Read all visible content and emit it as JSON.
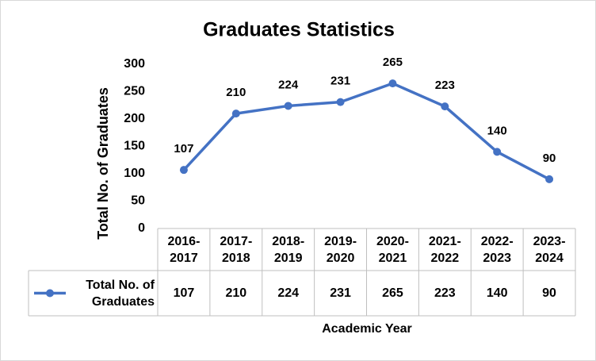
{
  "chart_data": {
    "type": "line",
    "title": "Graduates Statistics",
    "x_label": "Academic Year",
    "y_label": "Total No. of Graduates",
    "categories": [
      "2016-2017",
      "2017-2018",
      "2018-2019",
      "2019-2020",
      "2020-2021",
      "2021-2022",
      "2022-2023",
      "2023-2024"
    ],
    "series": [
      {
        "name": "Total No. of Graduates",
        "color": "#4472c4",
        "values": [
          107,
          210,
          224,
          231,
          265,
          223,
          140,
          90
        ]
      }
    ],
    "ylim": [
      0,
      300
    ],
    "yticks": [
      0,
      50,
      100,
      150,
      200,
      250,
      300
    ],
    "grid": false
  }
}
